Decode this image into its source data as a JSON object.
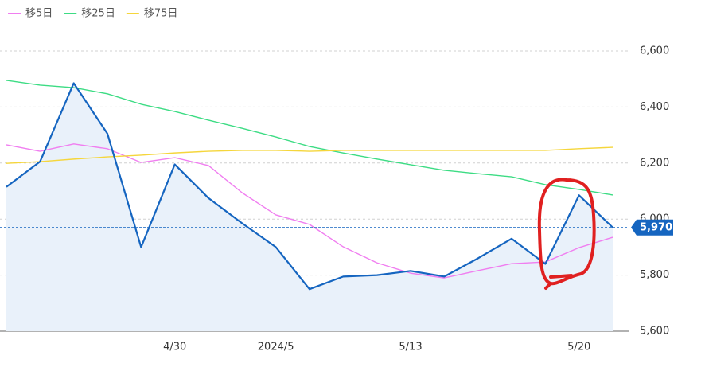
{
  "chart_data": {
    "type": "line",
    "categories": [
      null,
      null,
      null,
      null,
      null,
      "4/30",
      null,
      null,
      "2024/5",
      null,
      null,
      null,
      "5/13",
      null,
      null,
      null,
      null,
      "5/20",
      null
    ],
    "series": [
      {
        "name": "移5日",
        "color": "#f07ef0",
        "values": [
          6265,
          6242,
          6268,
          6251,
          6202,
          6219,
          6191,
          6094,
          6015,
          5981,
          5901,
          5844,
          5807,
          5790,
          5816,
          5841,
          5847,
          5898,
          5935
        ]
      },
      {
        "name": "移25日",
        "color": "#3ddc84",
        "values": [
          6495,
          6478,
          6469,
          6447,
          6410,
          6384,
          6353,
          6324,
          6293,
          6259,
          6236,
          6214,
          6194,
          6174,
          6162,
          6151,
          6123,
          6106,
          6086
        ]
      },
      {
        "name": "移75日",
        "color": "#f5d63c",
        "values": [
          6199,
          6205,
          6214,
          6222,
          6228,
          6236,
          6242,
          6245,
          6245,
          6242,
          6245,
          6245,
          6245,
          6245,
          6245,
          6245,
          6245,
          6251,
          6256
        ]
      },
      {
        "color": "#1565c0",
        "values": [
          6115,
          6205,
          6485,
          6305,
          5900,
          6195,
          6075,
          5985,
          5900,
          5750,
          5795,
          5800,
          5815,
          5795,
          5860,
          5930,
          5840,
          6085,
          5970
        ]
      }
    ],
    "price_label": {
      "value": 5970,
      "label": "5,970"
    },
    "ylim": [
      5600,
      6600
    ],
    "yticks": [
      {
        "value": 5600,
        "label": "5,600"
      },
      {
        "value": 5800,
        "label": "5,800"
      },
      {
        "value": 6000,
        "label": "6,000"
      },
      {
        "value": 6200,
        "label": "6,200"
      },
      {
        "value": 6400,
        "label": "6,400"
      },
      {
        "value": 6600,
        "label": "6,600"
      }
    ],
    "grid": true
  }
}
